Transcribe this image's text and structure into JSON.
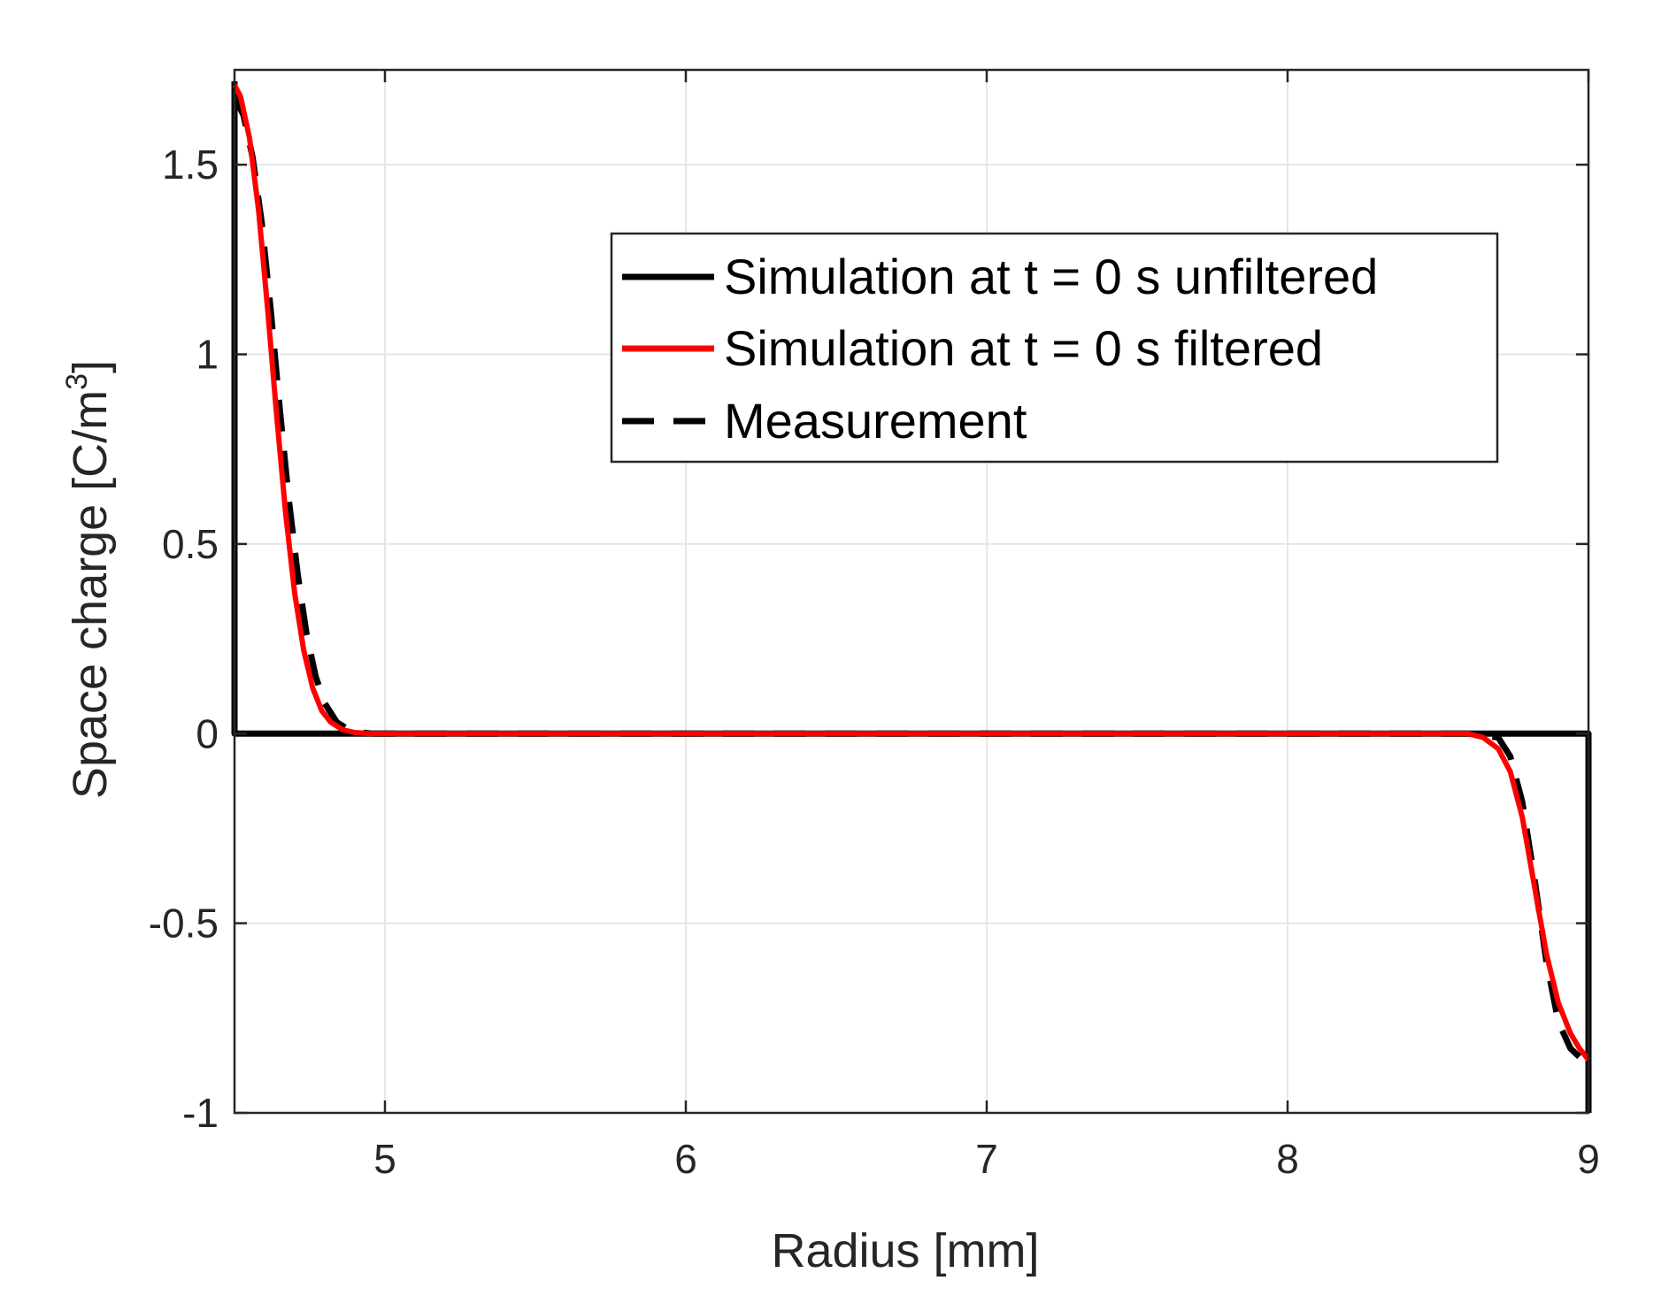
{
  "chart_data": {
    "type": "line",
    "title": "",
    "xlabel": "Radius [mm]",
    "ylabel": {
      "prefix": "Space charge [C/m",
      "superscript": "3",
      "suffix": "]"
    },
    "xlim": [
      4.5,
      9
    ],
    "ylim": [
      -1,
      1.75
    ],
    "grid": true,
    "legend_position": "top-right",
    "xticks": [
      5,
      6,
      7,
      8,
      9
    ],
    "xtick_labels": [
      "5",
      "6",
      "7",
      "8",
      "9"
    ],
    "yticks": [
      -1,
      -0.5,
      0,
      0.5,
      1,
      1.5
    ],
    "ytick_labels": [
      "-1",
      "-0.5",
      "0",
      "0.5",
      "1",
      "1.5"
    ],
    "colors": {
      "unfiltered": "#000000",
      "filtered": "#ff0000",
      "measurement": "#000000",
      "grid": "#e6e6e6",
      "axis": "#262626"
    },
    "series": [
      {
        "name": "Simulation at t = 0 s unfiltered",
        "style": "solid",
        "x": [
          4.5,
          4.5,
          4.5,
          9.0,
          9.0,
          9.0
        ],
        "y": [
          1.72,
          0.0,
          0.0,
          0.0,
          0.0,
          -1.0
        ]
      },
      {
        "name": "Simulation at t = 0 s filtered",
        "style": "solid",
        "x": [
          4.5,
          4.52,
          4.55,
          4.58,
          4.61,
          4.64,
          4.67,
          4.7,
          4.73,
          4.76,
          4.79,
          4.82,
          4.86,
          4.9,
          4.95,
          5.0,
          5.2,
          6.0,
          7.0,
          8.0,
          8.5,
          8.6,
          8.65,
          8.7,
          8.74,
          8.78,
          8.82,
          8.86,
          8.9,
          8.94,
          8.97,
          9.0
        ],
        "y": [
          1.71,
          1.68,
          1.57,
          1.38,
          1.12,
          0.84,
          0.58,
          0.37,
          0.22,
          0.12,
          0.06,
          0.03,
          0.01,
          0.003,
          0.0,
          0.0,
          0.0,
          0.0,
          0.0,
          0.0,
          0.0,
          0.0,
          -0.01,
          -0.04,
          -0.1,
          -0.22,
          -0.4,
          -0.58,
          -0.71,
          -0.79,
          -0.83,
          -0.86
        ]
      },
      {
        "name": "Measurement",
        "style": "dashed",
        "x": [
          4.5,
          4.53,
          4.56,
          4.59,
          4.62,
          4.65,
          4.68,
          4.71,
          4.74,
          4.77,
          4.8,
          4.84,
          4.88,
          4.92,
          4.96,
          5.0,
          5.2,
          6.0,
          7.0,
          8.0,
          8.5,
          8.6,
          8.7,
          8.74,
          8.78,
          8.82,
          8.86,
          8.9,
          8.94,
          8.98,
          9.0
        ],
        "y": [
          1.68,
          1.63,
          1.52,
          1.35,
          1.12,
          0.86,
          0.62,
          0.42,
          0.26,
          0.15,
          0.08,
          0.03,
          0.01,
          0.003,
          0.0,
          0.0,
          0.0,
          0.0,
          0.0,
          0.0,
          0.0,
          0.0,
          -0.01,
          -0.06,
          -0.18,
          -0.38,
          -0.6,
          -0.76,
          -0.83,
          -0.86,
          -0.87
        ]
      }
    ]
  }
}
